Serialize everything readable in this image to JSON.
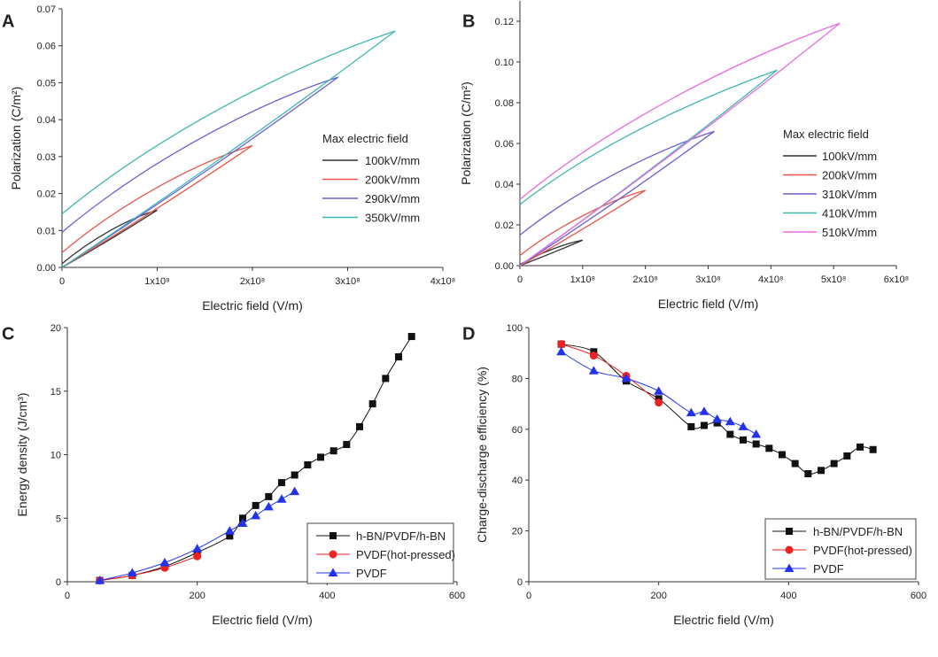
{
  "chart_data": [
    {
      "panel": "A",
      "type": "line",
      "xlabel": "Electric field (V/m)",
      "ylabel": "Polarization (C/m²)",
      "xlim": [
        0,
        400000000
      ],
      "ylim": [
        0,
        0.07
      ],
      "xticks": [
        0,
        100000000,
        200000000,
        300000000,
        400000000
      ],
      "xtick_labels": [
        "0",
        "1x10⁸",
        "2x10⁸",
        "3x10⁸",
        "4x10⁸"
      ],
      "yticks": [
        0,
        0.01,
        0.02,
        0.03,
        0.04,
        0.05,
        0.06,
        0.07
      ],
      "ytick_labels": [
        "0.00",
        "0.01",
        "0.02",
        "0.03",
        "0.04",
        "0.05",
        "0.06",
        "0.07"
      ],
      "legend_title": "Max electric field",
      "legend_position": "right",
      "series": [
        {
          "name": "100kV/mm",
          "color": "#333333",
          "emax": 100000000,
          "pmax": 0.0155,
          "pr": 0.001
        },
        {
          "name": "200kV/mm",
          "color": "#e8574a",
          "emax": 200000000,
          "pmax": 0.033,
          "pr": 0.004
        },
        {
          "name": "290kV/mm",
          "color": "#6c5fd1",
          "emax": 290000000,
          "pmax": 0.0515,
          "pr": 0.0095
        },
        {
          "name": "350kV/mm",
          "color": "#3fb7b0",
          "emax": 350000000,
          "pmax": 0.064,
          "pr": 0.0145
        }
      ]
    },
    {
      "panel": "B",
      "type": "line",
      "xlabel": "Electric field (V/m)",
      "ylabel": "Polarization (C/m²)",
      "xlim": [
        0,
        600000000
      ],
      "ylim": [
        0,
        0.13
      ],
      "xticks": [
        0,
        100000000,
        200000000,
        300000000,
        400000000,
        500000000,
        600000000
      ],
      "xtick_labels": [
        "0",
        "1x10⁸",
        "2x10⁸",
        "3x10⁸",
        "4x10⁸",
        "5x10⁸",
        "6x10⁸"
      ],
      "yticks": [
        0,
        0.02,
        0.04,
        0.06,
        0.08,
        0.1,
        0.12
      ],
      "ytick_labels": [
        "0.00",
        "0.02",
        "0.04",
        "0.06",
        "0.08",
        "0.10",
        "0.12"
      ],
      "legend_title": "Max electric field",
      "legend_position": "right",
      "series": [
        {
          "name": "100kV/mm",
          "color": "#333333",
          "emax": 100000000,
          "pmax": 0.0125,
          "pr": 0.0005
        },
        {
          "name": "200kV/mm",
          "color": "#e8574a",
          "emax": 200000000,
          "pmax": 0.037,
          "pr": 0.005
        },
        {
          "name": "310kV/mm",
          "color": "#6c5fd1",
          "emax": 310000000,
          "pmax": 0.066,
          "pr": 0.015
        },
        {
          "name": "410kV/mm",
          "color": "#3fb7b0",
          "emax": 410000000,
          "pmax": 0.096,
          "pr": 0.03
        },
        {
          "name": "510kV/mm",
          "color": "#e86be0",
          "emax": 510000000,
          "pmax": 0.119,
          "pr": 0.0325
        }
      ]
    },
    {
      "panel": "C",
      "type": "line",
      "xlabel": "Electric field (V/m)",
      "ylabel": "Energy density (J/cm³)",
      "xlim": [
        0,
        600
      ],
      "ylim": [
        0,
        20
      ],
      "xticks": [
        0,
        200,
        400,
        600
      ],
      "xtick_labels": [
        "0",
        "200",
        "400",
        "600"
      ],
      "yticks": [
        0,
        5,
        10,
        15,
        20
      ],
      "ytick_labels": [
        "0",
        "5",
        "10",
        "15",
        "20"
      ],
      "legend_position": "bottom-right",
      "series": [
        {
          "name": "h-BN/PVDF/h-BN",
          "color": "#111111",
          "marker": "square",
          "x": [
            50,
            100,
            150,
            200,
            250,
            270,
            290,
            310,
            330,
            350,
            370,
            390,
            410,
            430,
            450,
            470,
            490,
            510,
            530
          ],
          "y": [
            0.1,
            0.5,
            1.2,
            2.3,
            3.6,
            5.0,
            6.0,
            6.7,
            7.8,
            8.4,
            9.2,
            9.8,
            10.3,
            10.8,
            12.2,
            14.0,
            16.0,
            17.7,
            19.3
          ]
        },
        {
          "name": "PVDF(hot-pressed)",
          "color": "#ee2222",
          "marker": "circle",
          "x": [
            50,
            100,
            150,
            200
          ],
          "y": [
            0.1,
            0.5,
            1.1,
            2.0
          ]
        },
        {
          "name": "PVDF",
          "color": "#2233ee",
          "marker": "triangle",
          "x": [
            50,
            100,
            150,
            200,
            250,
            270,
            290,
            310,
            330,
            350
          ],
          "y": [
            0.1,
            0.7,
            1.5,
            2.6,
            4.0,
            4.6,
            5.2,
            5.9,
            6.5,
            7.1
          ]
        }
      ]
    },
    {
      "panel": "D",
      "type": "line",
      "xlabel": "Electric field (V/m)",
      "ylabel": "Charge-discharge efficiency (%)",
      "xlim": [
        0,
        600
      ],
      "ylim": [
        0,
        100
      ],
      "xticks": [
        0,
        200,
        400,
        600
      ],
      "xtick_labels": [
        "0",
        "200",
        "400",
        "600"
      ],
      "yticks": [
        0,
        20,
        40,
        60,
        80,
        100
      ],
      "ytick_labels": [
        "0",
        "20",
        "40",
        "60",
        "80",
        "100"
      ],
      "legend_position": "bottom-right",
      "series": [
        {
          "name": "h-BN/PVDF/h-BN",
          "color": "#111111",
          "marker": "square",
          "x": [
            50,
            100,
            150,
            200,
            250,
            270,
            290,
            310,
            330,
            350,
            370,
            390,
            410,
            430,
            450,
            470,
            490,
            510,
            530
          ],
          "y": [
            93.5,
            90.5,
            79,
            72,
            61,
            61.5,
            62.5,
            58,
            55.8,
            54.2,
            52.5,
            50,
            46.5,
            42.5,
            43.8,
            46.5,
            49.5,
            53,
            52
          ]
        },
        {
          "name": "PVDF(hot-pressed)",
          "color": "#ee2222",
          "marker": "circle",
          "x": [
            50,
            100,
            150,
            200
          ],
          "y": [
            93.5,
            89,
            81,
            70.5
          ]
        },
        {
          "name": "PVDF",
          "color": "#2233ee",
          "marker": "triangle",
          "x": [
            50,
            100,
            150,
            200,
            250,
            270,
            290,
            310,
            330,
            350
          ],
          "y": [
            90.5,
            83,
            80,
            75,
            66.5,
            67,
            64,
            63,
            61,
            58
          ]
        }
      ]
    }
  ]
}
